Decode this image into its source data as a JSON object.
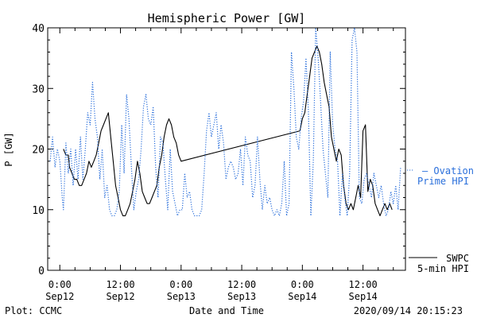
{
  "chart_data": {
    "type": "line",
    "title": "Hemispheric Power [GW]",
    "xlabel": "Date and Time",
    "ylabel": "P [GW]",
    "ylim": [
      0,
      40
    ],
    "yticks": [
      0,
      10,
      20,
      30,
      40
    ],
    "xlim": [
      -0.1,
      2.85
    ],
    "xticks": [
      {
        "x": 0.0,
        "line1": "0:00",
        "line2": "Sep12"
      },
      {
        "x": 0.5,
        "line1": "12:00",
        "line2": "Sep12"
      },
      {
        "x": 1.0,
        "line1": "0:00",
        "line2": "Sep13"
      },
      {
        "x": 1.5,
        "line1": "12:00",
        "line2": "Sep13"
      },
      {
        "x": 2.0,
        "line1": "0:00",
        "line2": "Sep14"
      },
      {
        "x": 2.5,
        "line1": "12:00",
        "line2": "Sep14"
      }
    ],
    "legend_position": "right",
    "series": [
      {
        "name_lines": [
          "SWPC",
          "5-min HPI"
        ],
        "color": "#000000",
        "style": "solid",
        "points": [
          [
            0.03,
            20
          ],
          [
            0.05,
            19
          ],
          [
            0.07,
            19
          ],
          [
            0.08,
            17
          ],
          [
            0.1,
            16
          ],
          [
            0.12,
            15
          ],
          [
            0.14,
            15
          ],
          [
            0.16,
            14
          ],
          [
            0.18,
            14
          ],
          [
            0.2,
            15
          ],
          [
            0.22,
            16
          ],
          [
            0.24,
            18
          ],
          [
            0.26,
            17
          ],
          [
            0.28,
            18
          ],
          [
            0.3,
            19
          ],
          [
            0.32,
            21
          ],
          [
            0.34,
            23
          ],
          [
            0.36,
            24
          ],
          [
            0.38,
            25
          ],
          [
            0.4,
            26
          ],
          [
            0.42,
            22
          ],
          [
            0.44,
            18
          ],
          [
            0.46,
            14
          ],
          [
            0.48,
            12
          ],
          [
            0.5,
            10
          ],
          [
            0.52,
            9
          ],
          [
            0.54,
            9
          ],
          [
            0.56,
            10
          ],
          [
            0.58,
            11
          ],
          [
            0.6,
            13
          ],
          [
            0.62,
            15
          ],
          [
            0.64,
            18
          ],
          [
            0.66,
            16
          ],
          [
            0.68,
            13
          ],
          [
            0.7,
            12
          ],
          [
            0.72,
            11
          ],
          [
            0.74,
            11
          ],
          [
            0.76,
            12
          ],
          [
            0.78,
            13
          ],
          [
            0.8,
            14
          ],
          [
            0.82,
            17
          ],
          [
            0.84,
            19
          ],
          [
            0.86,
            22
          ],
          [
            0.88,
            24
          ],
          [
            0.9,
            25
          ],
          [
            0.92,
            24
          ],
          [
            0.94,
            22
          ],
          [
            0.96,
            21
          ],
          [
            0.98,
            19
          ],
          [
            1.0,
            18
          ],
          [
            1.98,
            23
          ],
          [
            2.0,
            25
          ],
          [
            2.02,
            26
          ],
          [
            2.04,
            29
          ],
          [
            2.06,
            32
          ],
          [
            2.08,
            35
          ],
          [
            2.1,
            36
          ],
          [
            2.12,
            37
          ],
          [
            2.14,
            36
          ],
          [
            2.16,
            34
          ],
          [
            2.18,
            31
          ],
          [
            2.2,
            29
          ],
          [
            2.22,
            27
          ],
          [
            2.24,
            22
          ],
          [
            2.26,
            20
          ],
          [
            2.28,
            18
          ],
          [
            2.3,
            20
          ],
          [
            2.32,
            19
          ],
          [
            2.34,
            14
          ],
          [
            2.36,
            11
          ],
          [
            2.38,
            10
          ],
          [
            2.4,
            11
          ],
          [
            2.42,
            10
          ],
          [
            2.44,
            12
          ],
          [
            2.46,
            14
          ],
          [
            2.48,
            12
          ],
          [
            2.5,
            23
          ],
          [
            2.52,
            24
          ],
          [
            2.54,
            13
          ],
          [
            2.56,
            15
          ],
          [
            2.58,
            14
          ],
          [
            2.6,
            11
          ],
          [
            2.62,
            10
          ],
          [
            2.64,
            9
          ],
          [
            2.66,
            10
          ],
          [
            2.68,
            11
          ],
          [
            2.7,
            10
          ],
          [
            2.72,
            11
          ],
          [
            2.74,
            10
          ]
        ]
      },
      {
        "name_lines": [
          "— Ovation",
          "Prime HPI"
        ],
        "color": "#2a6fdb",
        "style": "dotted",
        "points": [
          [
            -0.08,
            18
          ],
          [
            -0.06,
            22
          ],
          [
            -0.04,
            17
          ],
          [
            -0.02,
            20
          ],
          [
            0.0,
            18
          ],
          [
            0.02,
            12
          ],
          [
            0.03,
            10
          ],
          [
            0.05,
            21
          ],
          [
            0.07,
            16
          ],
          [
            0.09,
            20
          ],
          [
            0.11,
            14
          ],
          [
            0.13,
            20
          ],
          [
            0.15,
            15
          ],
          [
            0.17,
            22
          ],
          [
            0.19,
            15
          ],
          [
            0.21,
            20
          ],
          [
            0.23,
            26
          ],
          [
            0.25,
            24
          ],
          [
            0.27,
            31
          ],
          [
            0.29,
            25
          ],
          [
            0.31,
            22
          ],
          [
            0.33,
            15
          ],
          [
            0.35,
            20
          ],
          [
            0.37,
            12
          ],
          [
            0.39,
            14
          ],
          [
            0.41,
            10
          ],
          [
            0.43,
            9
          ],
          [
            0.45,
            9
          ],
          [
            0.47,
            10
          ],
          [
            0.49,
            13
          ],
          [
            0.51,
            24
          ],
          [
            0.53,
            16
          ],
          [
            0.55,
            29
          ],
          [
            0.57,
            25
          ],
          [
            0.59,
            17
          ],
          [
            0.61,
            10
          ],
          [
            0.63,
            13
          ],
          [
            0.65,
            15
          ],
          [
            0.67,
            20
          ],
          [
            0.69,
            27
          ],
          [
            0.71,
            29
          ],
          [
            0.73,
            25
          ],
          [
            0.75,
            24
          ],
          [
            0.77,
            27
          ],
          [
            0.79,
            17
          ],
          [
            0.81,
            12
          ],
          [
            0.83,
            22
          ],
          [
            0.85,
            21
          ],
          [
            0.87,
            15
          ],
          [
            0.89,
            10
          ],
          [
            0.91,
            20
          ],
          [
            0.93,
            13
          ],
          [
            0.95,
            11
          ],
          [
            0.97,
            9
          ],
          [
            0.99,
            10
          ],
          [
            1.01,
            10
          ],
          [
            1.03,
            16
          ],
          [
            1.05,
            12
          ],
          [
            1.07,
            13
          ],
          [
            1.09,
            10
          ],
          [
            1.11,
            9
          ],
          [
            1.13,
            9
          ],
          [
            1.15,
            9
          ],
          [
            1.17,
            10
          ],
          [
            1.19,
            16
          ],
          [
            1.21,
            23
          ],
          [
            1.23,
            26
          ],
          [
            1.25,
            22
          ],
          [
            1.27,
            24
          ],
          [
            1.29,
            26
          ],
          [
            1.31,
            20
          ],
          [
            1.33,
            24
          ],
          [
            1.35,
            21
          ],
          [
            1.37,
            15
          ],
          [
            1.39,
            17
          ],
          [
            1.41,
            18
          ],
          [
            1.43,
            17
          ],
          [
            1.45,
            15
          ],
          [
            1.47,
            16
          ],
          [
            1.49,
            20
          ],
          [
            1.51,
            14
          ],
          [
            1.53,
            22
          ],
          [
            1.55,
            19
          ],
          [
            1.57,
            18
          ],
          [
            1.59,
            12
          ],
          [
            1.61,
            14
          ],
          [
            1.63,
            22
          ],
          [
            1.65,
            15
          ],
          [
            1.67,
            10
          ],
          [
            1.69,
            14
          ],
          [
            1.71,
            11
          ],
          [
            1.73,
            12
          ],
          [
            1.75,
            10
          ],
          [
            1.77,
            9
          ],
          [
            1.79,
            10
          ],
          [
            1.81,
            9
          ],
          [
            1.83,
            11
          ],
          [
            1.85,
            18
          ],
          [
            1.87,
            9
          ],
          [
            1.89,
            11
          ],
          [
            1.91,
            36
          ],
          [
            1.93,
            30
          ],
          [
            1.95,
            22
          ],
          [
            1.97,
            20
          ],
          [
            1.99,
            25
          ],
          [
            2.01,
            28
          ],
          [
            2.03,
            35
          ],
          [
            2.05,
            26
          ],
          [
            2.07,
            9
          ],
          [
            2.09,
            18
          ],
          [
            2.11,
            40
          ],
          [
            2.13,
            35
          ],
          [
            2.15,
            28
          ],
          [
            2.17,
            20
          ],
          [
            2.19,
            16
          ],
          [
            2.21,
            12
          ],
          [
            2.23,
            36
          ],
          [
            2.25,
            24
          ],
          [
            2.27,
            20
          ],
          [
            2.29,
            18
          ],
          [
            2.31,
            9
          ],
          [
            2.33,
            16
          ],
          [
            2.35,
            12
          ],
          [
            2.37,
            9
          ],
          [
            2.39,
            16
          ],
          [
            2.41,
            38
          ],
          [
            2.43,
            40
          ],
          [
            2.45,
            36
          ],
          [
            2.47,
            12
          ],
          [
            2.49,
            11
          ],
          [
            2.51,
            15
          ],
          [
            2.53,
            16
          ],
          [
            2.55,
            14
          ],
          [
            2.57,
            12
          ],
          [
            2.59,
            16
          ],
          [
            2.61,
            14
          ],
          [
            2.63,
            12
          ],
          [
            2.65,
            14
          ],
          [
            2.67,
            11
          ],
          [
            2.69,
            9
          ],
          [
            2.71,
            10
          ],
          [
            2.73,
            13
          ],
          [
            2.75,
            11
          ],
          [
            2.77,
            14
          ],
          [
            2.79,
            10
          ],
          [
            2.81,
            17
          ]
        ]
      }
    ]
  },
  "footer": {
    "left": "Plot: CCMC",
    "right": "2020/09/14 20:15:23"
  }
}
